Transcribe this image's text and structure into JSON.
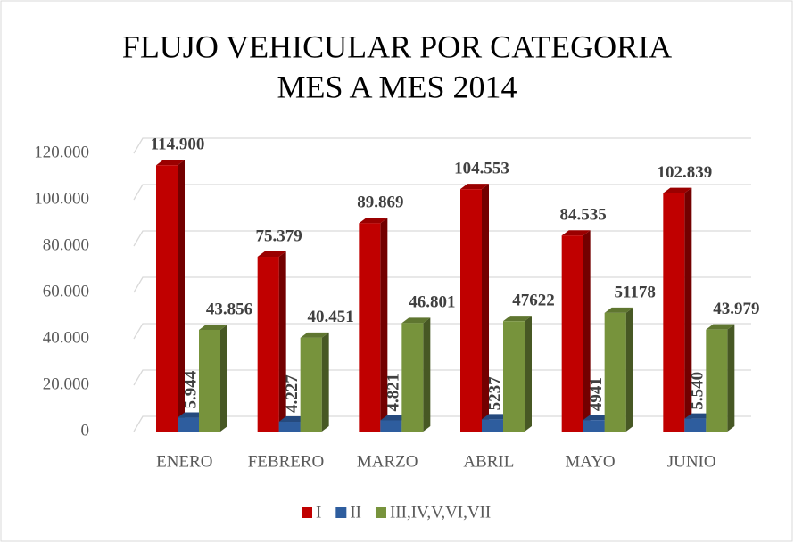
{
  "chart_data": {
    "type": "bar3d",
    "title": [
      "FLUJO VEHICULAR POR CATEGORIA",
      "MES A MES 2014"
    ],
    "categories": [
      "ENERO",
      "FEBRERO",
      "MARZO",
      "ABRIL",
      "MAYO",
      "JUNIO"
    ],
    "series": [
      {
        "name": "I",
        "color": "#c00000",
        "values": [
          114900,
          75379,
          89869,
          104553,
          84535,
          102839
        ],
        "value_labels": [
          "114.900",
          "75.379",
          "89.869",
          "104.553",
          "84.535",
          "102.839"
        ]
      },
      {
        "name": "II",
        "color": "#2e5d9e",
        "values": [
          5944,
          4227,
          4821,
          5237,
          4941,
          5540
        ],
        "value_labels": [
          "5.944",
          "4.227",
          "4.821",
          "5237",
          "4941",
          "5.540"
        ]
      },
      {
        "name": "III,IV,V,VI,VII",
        "color": "#77933c",
        "values": [
          43856,
          40451,
          46801,
          47622,
          51178,
          43979
        ],
        "value_labels": [
          "43.856",
          "40.451",
          "46.801",
          "47622",
          "51178",
          "43.979"
        ]
      }
    ],
    "ylim": [
      0,
      120000
    ],
    "yticks": [
      0,
      {
        "value": 20000,
        "label": "20.000"
      },
      {
        "value": 40000,
        "label": "40.000"
      },
      {
        "value": 60000,
        "label": "60.000"
      },
      {
        "value": 80000,
        "label": "80.000"
      },
      {
        "value": 100000,
        "label": "100.000"
      },
      {
        "value": 120000,
        "label": "120.000"
      }
    ],
    "grid": true,
    "legend": "bottom"
  }
}
